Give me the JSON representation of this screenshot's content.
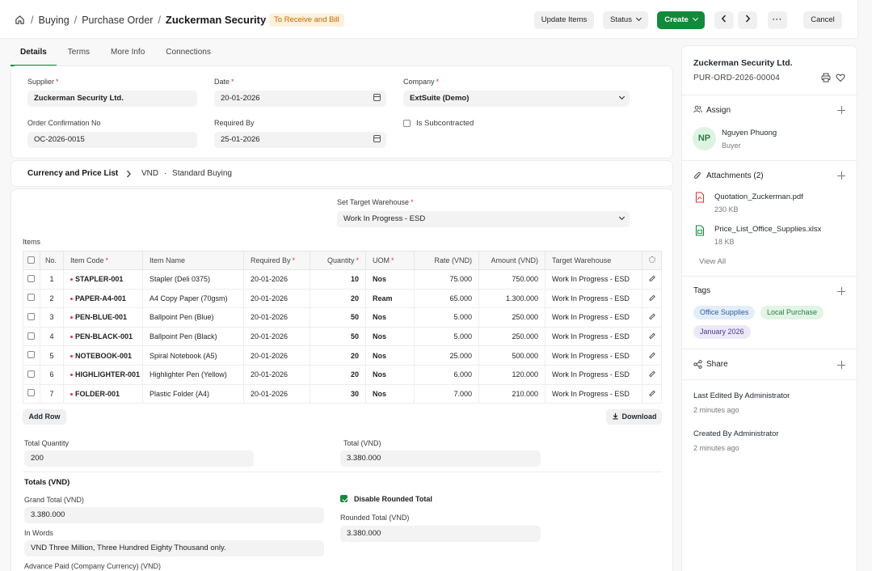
{
  "breadcrumb": {
    "module": "Buying",
    "doctype": "Purchase Order",
    "document": "Zuckerman Security Ltd."
  },
  "status_badge": "To Receive and Bill",
  "toolbar": {
    "update_items": "Update Items",
    "status": "Status",
    "create": "Create",
    "cancel": "Cancel"
  },
  "tabs": [
    "Details",
    "Terms",
    "More Info",
    "Connections"
  ],
  "form": {
    "supplier_label": "Supplier",
    "supplier_value": "Zuckerman Security Ltd.",
    "date_label": "Date",
    "date_value": "20-01-2026",
    "company_label": "Company",
    "company_value": "ExtSuite (Demo)",
    "order_conf_label": "Order Confirmation No",
    "order_conf_value": "OC-2026-0015",
    "required_by_label": "Required By",
    "required_by_value": "25-01-2026",
    "subcontracted_label": "Is Subcontracted"
  },
  "currency_section": {
    "title": "Currency and Price List",
    "currency": "VND",
    "price_list": "Standard Buying"
  },
  "warehouse": {
    "label": "Set Target Warehouse",
    "value": "Work In Progress - ESD"
  },
  "items": {
    "title": "Items",
    "headers": [
      "No.",
      "Item Code",
      "Item Name",
      "Required By",
      "Quantity",
      "UOM",
      "Rate (VND)",
      "Amount (VND)",
      "Target Warehouse"
    ],
    "rows": [
      {
        "no": "1",
        "code": "STAPLER-001",
        "name": "Stapler (Deli 0375)",
        "req": "20-01-2026",
        "qty": "10",
        "uom": "Nos",
        "rate": "75.000",
        "amount": "750.000",
        "wh": "Work In Progress - ESD"
      },
      {
        "no": "2",
        "code": "PAPER-A4-001",
        "name": "A4 Copy Paper (70gsm)",
        "req": "20-01-2026",
        "qty": "20",
        "uom": "Ream",
        "rate": "65.000",
        "amount": "1.300.000",
        "wh": "Work In Progress - ESD"
      },
      {
        "no": "3",
        "code": "PEN-BLUE-001",
        "name": "Ballpoint Pen (Blue)",
        "req": "20-01-2026",
        "qty": "50",
        "uom": "Nos",
        "rate": "5.000",
        "amount": "250.000",
        "wh": "Work In Progress - ESD"
      },
      {
        "no": "4",
        "code": "PEN-BLACK-001",
        "name": "Ballpoint Pen (Black)",
        "req": "20-01-2026",
        "qty": "50",
        "uom": "Nos",
        "rate": "5.000",
        "amount": "250.000",
        "wh": "Work In Progress - ESD"
      },
      {
        "no": "5",
        "code": "NOTEBOOK-001",
        "name": "Spiral Notebook (A5)",
        "req": "20-01-2026",
        "qty": "20",
        "uom": "Nos",
        "rate": "25.000",
        "amount": "500.000",
        "wh": "Work In Progress - ESD"
      },
      {
        "no": "6",
        "code": "HIGHLIGHTER-001",
        "name": "Highlighter Pen (Yellow)",
        "req": "20-01-2026",
        "qty": "20",
        "uom": "Nos",
        "rate": "6.000",
        "amount": "120.000",
        "wh": "Work In Progress - ESD"
      },
      {
        "no": "7",
        "code": "FOLDER-001",
        "name": "Plastic Folder (A4)",
        "req": "20-01-2026",
        "qty": "30",
        "uom": "Nos",
        "rate": "7.000",
        "amount": "210.000",
        "wh": "Work In Progress - ESD"
      }
    ],
    "add_row": "Add Row",
    "download": "Download"
  },
  "summary": {
    "total_qty_label": "Total Quantity",
    "total_qty": "200",
    "total_label": "Total (VND)",
    "total": "3.380.000"
  },
  "totals": {
    "title": "Totals (VND)",
    "grand_total_label": "Grand Total (VND)",
    "grand_total": "3.380.000",
    "disable_rounded_label": "Disable Rounded Total",
    "rounded_total_label": "Rounded Total (VND)",
    "rounded_total": "3.380.000",
    "in_words_label": "In Words",
    "in_words": "VND Three Million, Three Hundred Eighty Thousand only.",
    "advance_label": "Advance Paid (Company Currency) (VND)"
  },
  "sidebar": {
    "title": "Zuckerman Security Ltd.",
    "doc_id": "PUR-ORD-2026-00004",
    "assign_label": "Assign",
    "assignee_initials": "NP",
    "assignee_name": "Nguyen Phuong",
    "assignee_role": "Buyer",
    "attachments_label": "Attachments (2)",
    "attachments": [
      {
        "name": "Quotation_Zuckerman.pdf",
        "size": "230 KB"
      },
      {
        "name": "Price_List_Office_Supplies.xlsx",
        "size": "18 KB"
      }
    ],
    "view_all": "View All",
    "tags_label": "Tags",
    "tags": [
      "Office Supplies",
      "Local Purchase",
      "January 2026"
    ],
    "share_label": "Share",
    "last_edited": "Last Edited By Administrator",
    "last_edited_time": "2 minutes ago",
    "created": "Created By Administrator",
    "created_time": "2 minutes ago"
  },
  "colors": {
    "primary": "#13893b",
    "badge_bg": "#fdf0dc",
    "badge_text": "#c46a00",
    "required": "#e03636"
  },
  "icons": [
    "home-icon",
    "chevron-down-icon",
    "chevron-left-icon",
    "chevron-right-icon",
    "more-icon",
    "calendar-icon",
    "settings-icon",
    "edit-icon",
    "download-icon",
    "printer-icon",
    "heart-icon",
    "users-icon",
    "paperclip-icon",
    "pdf-icon",
    "spreadsheet-icon",
    "share-icon",
    "plus-icon"
  ]
}
